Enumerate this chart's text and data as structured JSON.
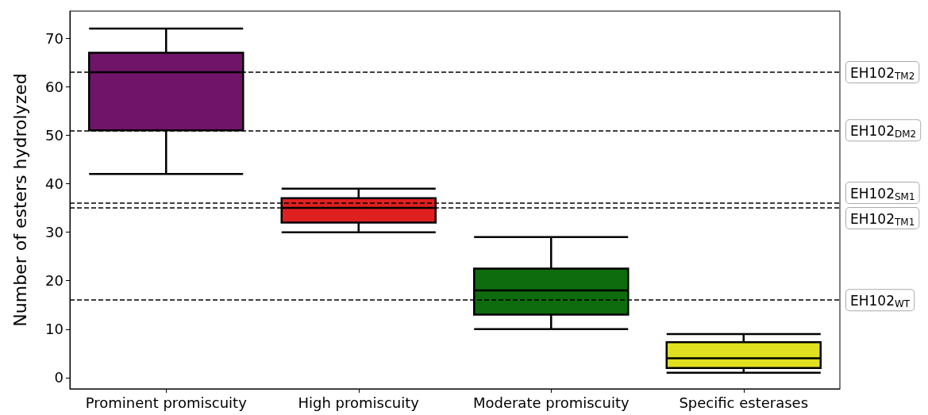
{
  "chart_data": {
    "type": "box",
    "ylabel": "Number of esters hydrolyzed",
    "categories": [
      "Prominent promiscuity",
      "High promiscuity",
      "Moderate promiscuity",
      "Specific esterases"
    ],
    "colors": [
      "#6f1469",
      "#e02020",
      "#0e6b0e",
      "#e0e020"
    ],
    "boxes": [
      {
        "low": 42,
        "q1": 51,
        "median": 63,
        "q3": 67,
        "high": 72
      },
      {
        "low": 30,
        "q1": 32,
        "median": 35,
        "q3": 37,
        "high": 39
      },
      {
        "low": 10,
        "q1": 13,
        "median": 18,
        "q3": 22.5,
        "high": 29
      },
      {
        "low": 1,
        "q1": 2,
        "median": 4,
        "q3": 7.3,
        "high": 9
      }
    ],
    "ylim": [
      -2.3,
      75.6
    ],
    "yticks": [
      0,
      10,
      20,
      30,
      40,
      50,
      60,
      70
    ],
    "ref_lines": [
      {
        "axis": "y",
        "value": 63,
        "label": "EH102$_{TM2}$",
        "line_style": "dashed",
        "color": "#000000"
      },
      {
        "axis": "y",
        "value": 51,
        "label": "EH102$_{DM2}$",
        "line_style": "dashed",
        "color": "#000000"
      },
      {
        "axis": "y",
        "value": 36,
        "label": "EH102$_{SM1}$",
        "line_style": "dashed",
        "color": "#000000"
      },
      {
        "axis": "y",
        "value": 35,
        "label": "EH102$_{TM1}$",
        "line_style": "dashed",
        "color": "#000000"
      },
      {
        "axis": "y",
        "value": 16,
        "label": "EH102$_{WT}$",
        "line_style": "dashed",
        "color": "#000000"
      }
    ],
    "grid": false
  }
}
